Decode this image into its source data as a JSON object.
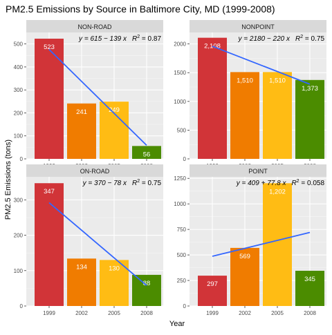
{
  "chart_data": {
    "type": "bar",
    "title": "PM2.5 Emissions by Source in Baltimore City, MD (1999-2008)",
    "xlabel": "Year",
    "ylabel": "PM2.5 Emissions (tons)",
    "categories": [
      "1999",
      "2002",
      "2005",
      "2008"
    ],
    "bar_colors": [
      "#d13438",
      "#f07c00",
      "#ffbc14",
      "#4b8c00"
    ],
    "trend_color": "#3366ff",
    "panel_background": "#ebebeb",
    "strip_background": "#d9d9d9",
    "grid": true,
    "panels": [
      {
        "name": "NON-ROAD",
        "values": [
          523,
          241,
          249,
          56
        ],
        "value_labels": [
          "523",
          "241",
          "249",
          "56"
        ],
        "ylim": [
          0,
          550
        ],
        "yticks": [
          0,
          100,
          200,
          300,
          400,
          500
        ],
        "trend": {
          "intercept": 615,
          "slope": -139
        },
        "equation": "y = 615 − 139 x",
        "r2_label": "R",
        "r2_value": " = 0.87"
      },
      {
        "name": "NONPOINT",
        "values": [
          2108,
          1510,
          1510,
          1373
        ],
        "value_labels": [
          "2,108",
          "1,510",
          "1,510",
          "1,373"
        ],
        "ylim": [
          0,
          2200
        ],
        "yticks": [
          0,
          500,
          1000,
          1500,
          2000
        ],
        "trend": {
          "intercept": 2180,
          "slope": -220
        },
        "equation": "y = 2180 − 220 x",
        "r2_label": "R",
        "r2_value": " = 0.75"
      },
      {
        "name": "ON-ROAD",
        "values": [
          347,
          134,
          130,
          88
        ],
        "value_labels": [
          "347",
          "134",
          "130",
          "88"
        ],
        "ylim": [
          0,
          365
        ],
        "yticks": [
          0,
          100,
          200,
          300
        ],
        "trend": {
          "intercept": 370,
          "slope": -78
        },
        "equation": "y = 370 − 78 x",
        "r2_label": "R",
        "r2_value": " = 0.75"
      },
      {
        "name": "POINT",
        "values": [
          297,
          569,
          1202,
          345
        ],
        "value_labels": [
          "297",
          "569",
          "1,202",
          "345"
        ],
        "ylim": [
          0,
          1265
        ],
        "yticks": [
          0,
          250,
          500,
          750,
          1000,
          1250
        ],
        "trend": {
          "intercept": 409,
          "slope": 77.8
        },
        "equation": "y = 409 + 77.8 x",
        "r2_label": "R",
        "r2_value": " = 0.058"
      }
    ]
  }
}
